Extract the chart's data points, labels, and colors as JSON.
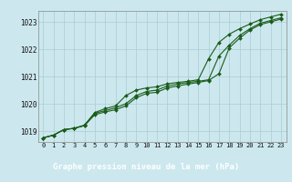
{
  "title": "Graphe pression niveau de la mer (hPa)",
  "bg_color": "#cce8ee",
  "grid_color": "#aaccd4",
  "line_color": "#1a5c1a",
  "label_bg": "#1a5c1a",
  "label_fg": "#ffffff",
  "x_labels": [
    "0",
    "1",
    "2",
    "3",
    "4",
    "5",
    "6",
    "7",
    "8",
    "9",
    "10",
    "11",
    "12",
    "13",
    "14",
    "15",
    "16",
    "17",
    "18",
    "19",
    "20",
    "21",
    "22",
    "23"
  ],
  "ylim": [
    1018.6,
    1023.4
  ],
  "yticks": [
    1019,
    1020,
    1021,
    1022,
    1023
  ],
  "series1": [
    1018.75,
    1018.85,
    1019.05,
    1019.1,
    1019.2,
    1019.65,
    1019.75,
    1019.85,
    1020.0,
    1020.3,
    1020.45,
    1020.5,
    1020.65,
    1020.72,
    1020.78,
    1020.82,
    1020.88,
    1021.75,
    1022.15,
    1022.5,
    1022.75,
    1022.95,
    1023.05,
    1023.15
  ],
  "series2": [
    1018.75,
    1018.85,
    1019.05,
    1019.1,
    1019.2,
    1019.6,
    1019.7,
    1019.78,
    1019.92,
    1020.22,
    1020.38,
    1020.42,
    1020.58,
    1020.65,
    1020.72,
    1020.78,
    1020.85,
    1021.1,
    1022.05,
    1022.4,
    1022.7,
    1022.9,
    1023.0,
    1023.1
  ],
  "series3": [
    1018.75,
    1018.85,
    1019.05,
    1019.1,
    1019.22,
    1019.68,
    1019.82,
    1019.92,
    1020.3,
    1020.5,
    1020.58,
    1020.62,
    1020.73,
    1020.78,
    1020.82,
    1020.88,
    1021.65,
    1022.25,
    1022.55,
    1022.75,
    1022.92,
    1023.08,
    1023.18,
    1023.28
  ]
}
